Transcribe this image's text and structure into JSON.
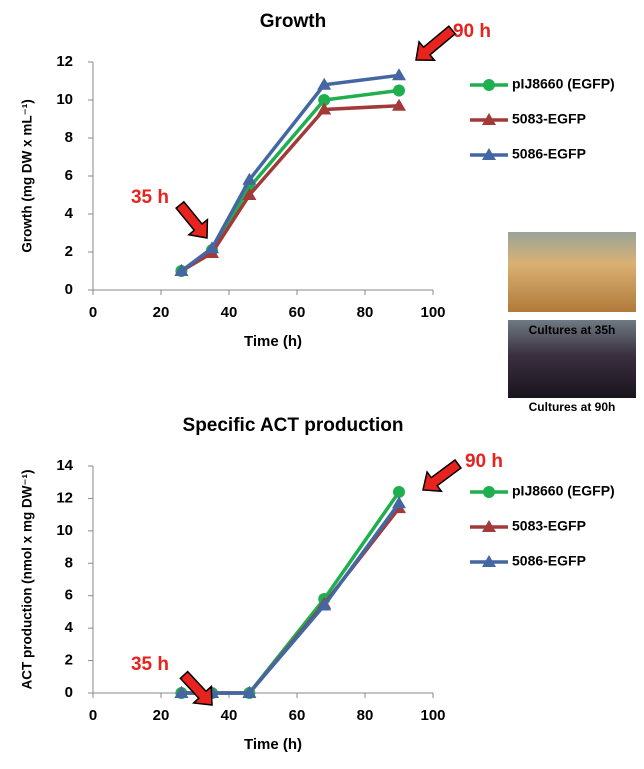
{
  "chart_data": [
    {
      "type": "line",
      "title": "Growth",
      "x_label": "Time (h)",
      "y_label": "Growth (mg DW x mL⁻¹)",
      "x": [
        26,
        35,
        46,
        68,
        90
      ],
      "series": [
        {
          "name": "pIJ8660 (EGFP)",
          "color": "#1faf4e",
          "marker": "circle",
          "values": [
            1.0,
            2.1,
            5.4,
            10.0,
            10.5
          ]
        },
        {
          "name": "5083-EGFP",
          "color": "#a33a3a",
          "marker": "triangle",
          "values": [
            1.0,
            1.95,
            5.0,
            9.5,
            9.7
          ]
        },
        {
          "name": "5086-EGFP",
          "color": "#4466a2",
          "marker": "triangle",
          "values": [
            1.0,
            2.2,
            5.8,
            10.8,
            11.3
          ]
        }
      ],
      "xlim": [
        0,
        100
      ],
      "xticks": [
        0,
        20,
        40,
        60,
        80,
        100
      ],
      "ylim": [
        0,
        12
      ],
      "yticks": [
        0,
        2,
        4,
        6,
        8,
        10,
        12
      ],
      "grid": false,
      "legend": "right",
      "annotations": [
        {
          "text": "35 h"
        },
        {
          "text": "90 h"
        }
      ]
    },
    {
      "type": "line",
      "title": "Specific ACT production",
      "x_label": "Time (h)",
      "y_label": "ACT production (nmol x mg DW⁻¹)",
      "x": [
        26,
        35,
        46,
        68,
        90
      ],
      "series": [
        {
          "name": "pIJ8660 (EGFP)",
          "color": "#1faf4e",
          "marker": "circle",
          "values": [
            0,
            0,
            0,
            5.8,
            12.4
          ]
        },
        {
          "name": "5083-EGFP",
          "color": "#a33a3a",
          "marker": "triangle",
          "values": [
            0,
            0,
            0,
            5.5,
            11.4
          ]
        },
        {
          "name": "5086-EGFP",
          "color": "#4466a2",
          "marker": "triangle",
          "values": [
            0,
            0,
            0,
            5.4,
            11.7
          ]
        }
      ],
      "xlim": [
        0,
        100
      ],
      "xticks": [
        0,
        20,
        40,
        60,
        80,
        100
      ],
      "ylim": [
        0,
        14
      ],
      "yticks": [
        0,
        2,
        4,
        6,
        8,
        10,
        12,
        14
      ],
      "grid": false,
      "legend": "right",
      "annotations": [
        {
          "text": "35 h"
        },
        {
          "text": "90 h"
        }
      ]
    }
  ],
  "photos": [
    {
      "caption": "Cultures at 35h"
    },
    {
      "caption": "Cultures at 90h"
    }
  ]
}
